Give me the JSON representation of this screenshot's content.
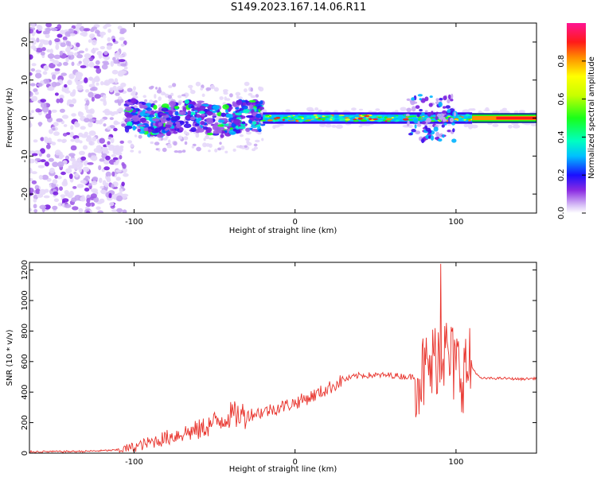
{
  "title": "S149.2023.167.14.06.R11",
  "chart_data": [
    {
      "type": "heatmap",
      "xlabel": "Height of straight line (km)",
      "ylabel": "Frequency (Hz)",
      "xlim": [
        -165,
        150
      ],
      "ylim": [
        -25,
        25
      ],
      "xticks": [
        -100,
        0,
        100
      ],
      "yticks": [
        -20,
        -10,
        0,
        10,
        20
      ],
      "colorbar": {
        "label": "Normalized spectral amplitude",
        "range": [
          0.0,
          1.0
        ],
        "ticks": [
          "0.0",
          "0.2",
          "0.4",
          "0.6",
          "0.8"
        ]
      },
      "signal_band": {
        "center_frequency_hz": 0,
        "note": "noise at x < -105 km, broadband return -105 to -20 km, narrow strong band from -20 to 150 km"
      },
      "grid": false
    },
    {
      "type": "line",
      "xlabel": "Height of straight line (km)",
      "ylabel": "SNR (10 * v/v)",
      "xlim": [
        -165,
        150
      ],
      "ylim": [
        0,
        1250
      ],
      "xticks": [
        -100,
        0,
        100
      ],
      "yticks": [
        0,
        200,
        400,
        600,
        800,
        1000,
        1200
      ],
      "line_color": "#e8312a",
      "grid": false,
      "series": [
        {
          "x": [
            -165,
            -150,
            -130,
            -110,
            -100,
            -90,
            -80,
            -70,
            -60,
            -50,
            -40,
            -30,
            -20,
            -10,
            0,
            10,
            20,
            30,
            40,
            50,
            60,
            70,
            75,
            80,
            85,
            90,
            95,
            100,
            105,
            110,
            115,
            120,
            130,
            140,
            150
          ],
          "values": [
            10,
            10,
            12,
            20,
            40,
            70,
            100,
            130,
            150,
            200,
            250,
            250,
            270,
            300,
            330,
            370,
            420,
            480,
            510,
            510,
            510,
            500,
            500,
            520,
            560,
            700,
            620,
            560,
            540,
            560,
            490,
            490,
            490,
            485,
            490
          ]
        }
      ]
    }
  ]
}
